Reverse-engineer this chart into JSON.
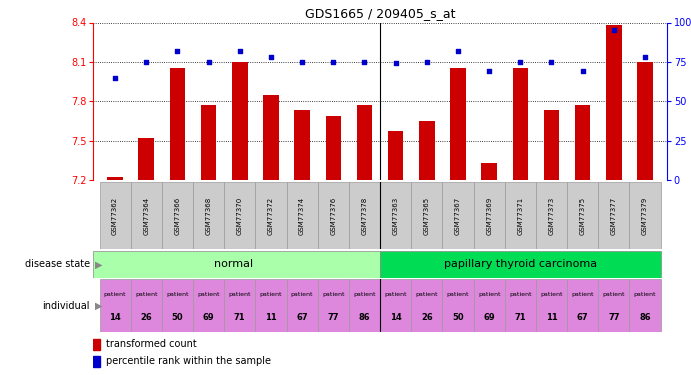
{
  "title": "GDS1665 / 209405_s_at",
  "samples": [
    "GSM77362",
    "GSM77364",
    "GSM77366",
    "GSM77368",
    "GSM77370",
    "GSM77372",
    "GSM77374",
    "GSM77376",
    "GSM77378",
    "GSM77363",
    "GSM77365",
    "GSM77367",
    "GSM77369",
    "GSM77371",
    "GSM77373",
    "GSM77375",
    "GSM77377",
    "GSM77379"
  ],
  "transformed_count": [
    7.22,
    7.52,
    8.05,
    7.77,
    8.1,
    7.85,
    7.73,
    7.69,
    7.77,
    7.57,
    7.65,
    8.05,
    7.33,
    8.05,
    7.73,
    7.77,
    8.38,
    8.1
  ],
  "percentile_rank": [
    65,
    75,
    82,
    75,
    82,
    78,
    75,
    75,
    75,
    74,
    75,
    82,
    69,
    75,
    75,
    69,
    95,
    78
  ],
  "ylim_left": [
    7.2,
    8.4
  ],
  "ylim_right": [
    0,
    100
  ],
  "yticks_left": [
    7.2,
    7.5,
    7.8,
    8.1,
    8.4
  ],
  "yticks_right": [
    0,
    25,
    50,
    75,
    100
  ],
  "ytick_right_labels": [
    "0",
    "25",
    "50",
    "75",
    "100%"
  ],
  "bar_color": "#cc0000",
  "dot_color": "#0000cc",
  "bar_width": 0.5,
  "normal_color": "#aaffaa",
  "carcinoma_color": "#00dd55",
  "individual_color": "#dd88dd",
  "gsm_bg_color": "#cccccc",
  "legend_bar": "transformed count",
  "legend_dot": "percentile rank within the sample"
}
